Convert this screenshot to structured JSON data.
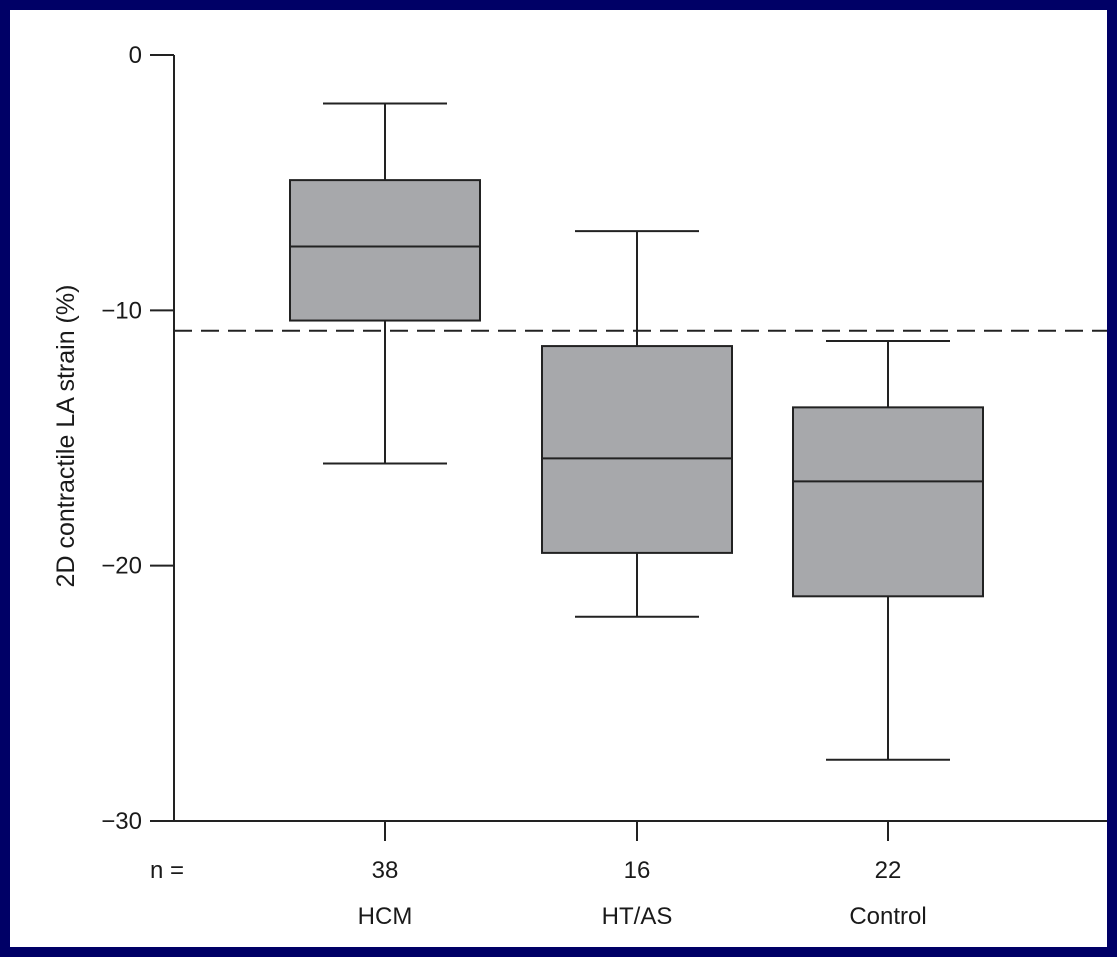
{
  "chart_data": {
    "type": "box",
    "ylabel": "2D contractile LA strain (%)",
    "ylim": [
      -30,
      0
    ],
    "yticks": [
      0,
      -10,
      -20,
      -30
    ],
    "ytick_labels": [
      "0",
      "−10",
      "−20",
      "−30"
    ],
    "n_label": "n =",
    "reference_line": {
      "value": -10.8,
      "style": "dashed"
    },
    "box_color": "#a7a8ab",
    "categories": [
      "HCM",
      "HT/AS",
      "Control"
    ],
    "n": [
      "38",
      "16",
      "22"
    ],
    "boxes": [
      {
        "name": "HCM",
        "whisker_low": -16.0,
        "q1": -10.4,
        "median": -7.5,
        "q3": -4.9,
        "whisker_high": -1.9
      },
      {
        "name": "HT/AS",
        "whisker_low": -22.0,
        "q1": -19.5,
        "median": -15.8,
        "q3": -11.4,
        "whisker_high": -6.9
      },
      {
        "name": "Control",
        "whisker_low": -27.6,
        "q1": -21.2,
        "median": -16.7,
        "q3": -13.8,
        "whisker_high": -11.2
      }
    ],
    "grid": false,
    "legend": "none"
  }
}
